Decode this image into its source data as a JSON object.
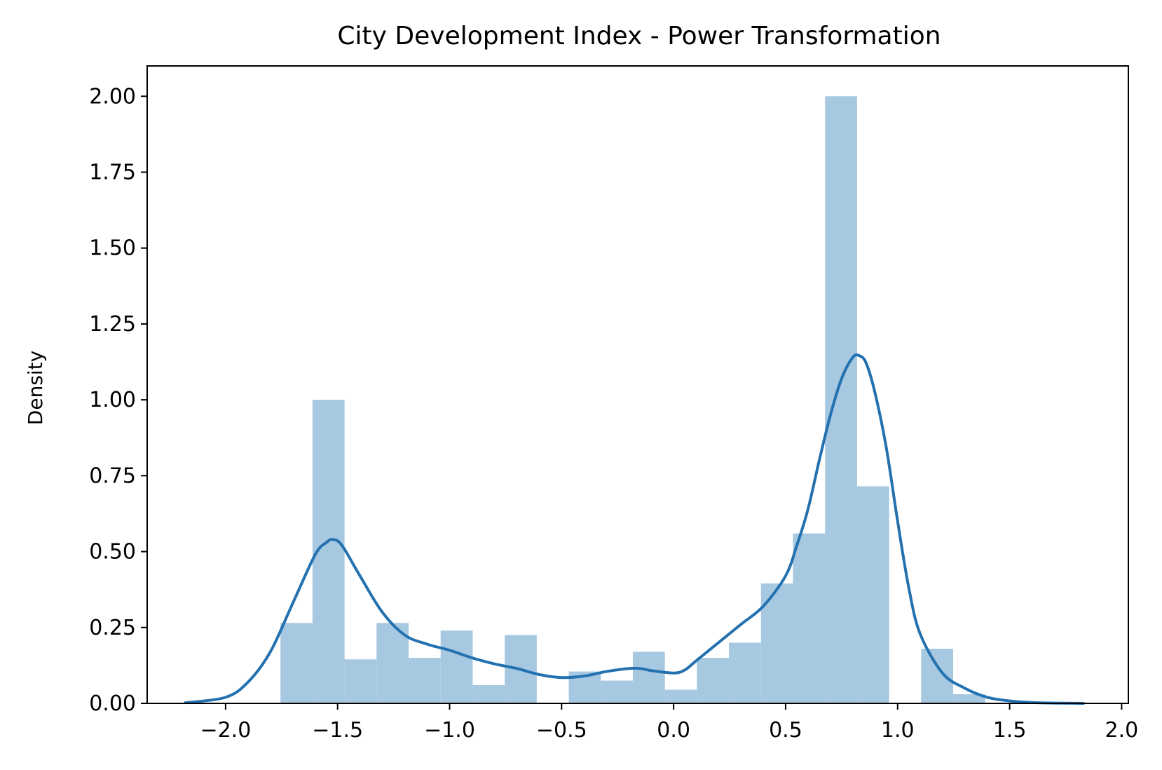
{
  "chart_data": {
    "type": "bar",
    "title": "City Development Index - Power Transformation",
    "xlabel": "",
    "ylabel": "Density",
    "xlim": [
      -2.35,
      2.03
    ],
    "ylim": [
      0,
      2.1
    ],
    "x_ticks": [
      -2.0,
      -1.5,
      -1.0,
      -0.5,
      0.0,
      0.5,
      1.0,
      1.5,
      2.0
    ],
    "x_tick_labels": [
      "−2.0",
      "−1.5",
      "−1.0",
      "−0.5",
      "0.0",
      "0.5",
      "1.0",
      "1.5",
      "2.0"
    ],
    "y_ticks": [
      0.0,
      0.25,
      0.5,
      0.75,
      1.0,
      1.25,
      1.5,
      1.75,
      2.0
    ],
    "y_tick_labels": [
      "0.00",
      "0.25",
      "0.50",
      "0.75",
      "1.00",
      "1.25",
      "1.50",
      "1.75",
      "2.00"
    ],
    "grid": false,
    "histogram": {
      "bin_edges": [
        -1.755,
        -1.612,
        -1.469,
        -1.326,
        -1.183,
        -1.04,
        -0.897,
        -0.754,
        -0.611,
        -0.468,
        -0.325,
        -0.182,
        -0.039,
        0.104,
        0.247,
        0.39,
        0.533,
        0.676,
        0.819,
        0.962,
        1.105,
        1.248,
        1.391
      ],
      "density": [
        0.265,
        1.0,
        0.145,
        0.265,
        0.15,
        0.24,
        0.06,
        0.225,
        0.0,
        0.105,
        0.075,
        0.17,
        0.045,
        0.15,
        0.2,
        0.395,
        0.56,
        2.0,
        0.715,
        0.0,
        0.18,
        0.03
      ],
      "color": "#a6c8e1"
    },
    "kde": {
      "x": [
        -2.18,
        -2.0,
        -1.9,
        -1.8,
        -1.7,
        -1.6,
        -1.55,
        -1.52,
        -1.48,
        -1.4,
        -1.3,
        -1.2,
        -1.1,
        -1.0,
        -0.9,
        -0.8,
        -0.7,
        -0.6,
        -0.5,
        -0.4,
        -0.3,
        -0.2,
        -0.15,
        -0.1,
        0.0,
        0.05,
        0.1,
        0.2,
        0.3,
        0.4,
        0.5,
        0.55,
        0.6,
        0.65,
        0.7,
        0.75,
        0.8,
        0.83,
        0.86,
        0.9,
        0.95,
        1.0,
        1.05,
        1.1,
        1.2,
        1.3,
        1.4,
        1.5,
        1.6,
        1.7,
        1.83
      ],
      "y": [
        0.002,
        0.02,
        0.07,
        0.17,
        0.33,
        0.49,
        0.53,
        0.54,
        0.52,
        0.42,
        0.3,
        0.225,
        0.195,
        0.175,
        0.15,
        0.13,
        0.115,
        0.095,
        0.085,
        0.09,
        0.105,
        0.115,
        0.115,
        0.108,
        0.1,
        0.11,
        0.14,
        0.2,
        0.26,
        0.32,
        0.42,
        0.52,
        0.64,
        0.8,
        0.95,
        1.07,
        1.14,
        1.145,
        1.12,
        1.02,
        0.84,
        0.6,
        0.38,
        0.23,
        0.1,
        0.05,
        0.02,
        0.008,
        0.003,
        0.001,
        0.0
      ],
      "color": "#2471b0"
    }
  }
}
